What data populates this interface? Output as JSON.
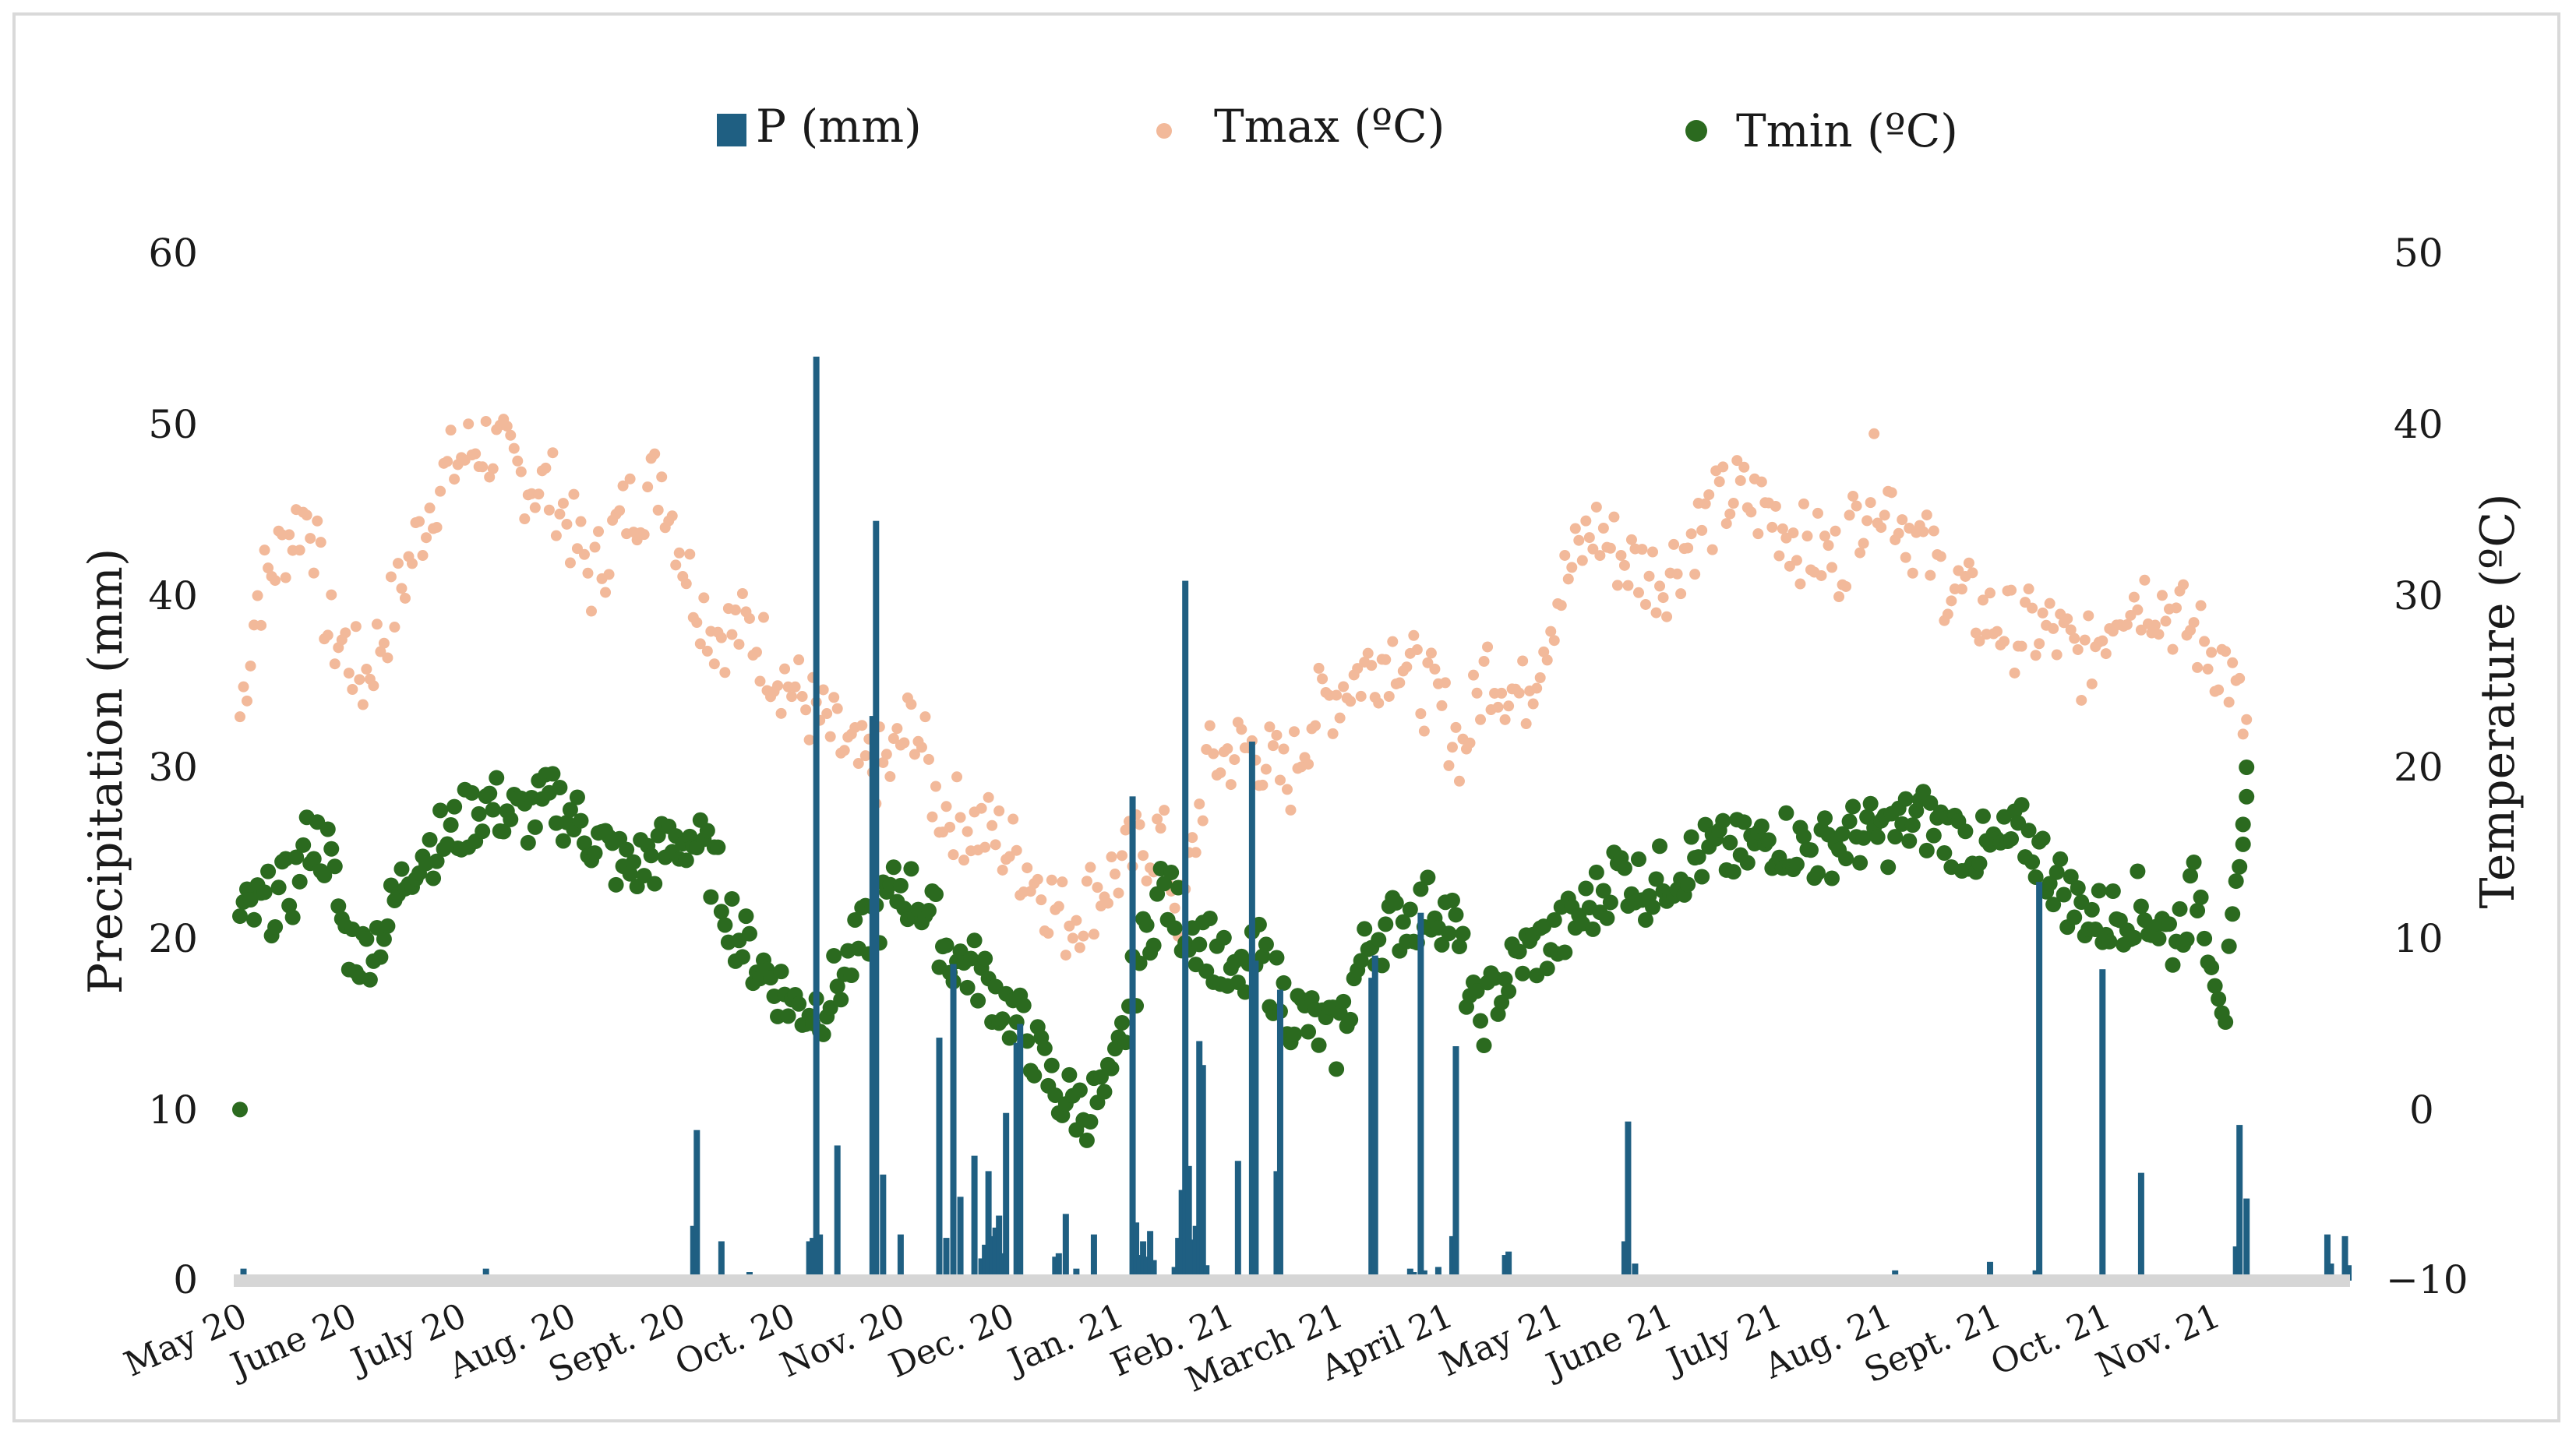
{
  "chart_data": {
    "type": "bar+scatter",
    "title": "",
    "legend": {
      "position": "top",
      "entries": [
        {
          "label": "P (mm)",
          "color": "#1f5f82",
          "marker": "bar"
        },
        {
          "label": "Tmax (ºC)",
          "color": "#f2b99a",
          "marker": "dot"
        },
        {
          "label": "Tmin (ºC)",
          "color": "#2b6a1f",
          "marker": "dot"
        }
      ]
    },
    "y_left": {
      "label": "Precipitation (mm)",
      "min": 0,
      "max": 60,
      "ticks": [
        "60",
        "50",
        "40",
        "30",
        "20",
        "10",
        "0"
      ]
    },
    "y_right": {
      "label": "Temperature (ºC)",
      "min": -10,
      "max": 50,
      "ticks": [
        "50",
        "40",
        "30",
        "20",
        "10",
        "0",
        "−10"
      ]
    },
    "x_months": [
      "May 20",
      "June 20",
      "July 20",
      "Aug. 20",
      "Sept. 20",
      "Oct. 20",
      "Nov. 20",
      "Dec. 20",
      "Jan. 21",
      "Feb. 21",
      "March 21",
      "April 21",
      "May 21",
      "June 21",
      "July 21",
      "Aug. 21",
      "Sept. 21",
      "Oct. 21",
      "Nov. 21"
    ],
    "x_range_days": [
      0,
      570
    ],
    "precipitation": [
      {
        "day": 1,
        "p": 0.7
      },
      {
        "day": 25,
        "p": 0.2
      },
      {
        "day": 70,
        "p": 0.7
      },
      {
        "day": 102,
        "p": 0.2
      },
      {
        "day": 129,
        "p": 3.2
      },
      {
        "day": 130,
        "p": 8.8
      },
      {
        "day": 137,
        "p": 2.3
      },
      {
        "day": 145,
        "p": 0.5
      },
      {
        "day": 162,
        "p": 2.3
      },
      {
        "day": 163,
        "p": 2.5
      },
      {
        "day": 164,
        "p": 54
      },
      {
        "day": 165,
        "p": 2.7
      },
      {
        "day": 170,
        "p": 7.9
      },
      {
        "day": 178,
        "p": 0.2
      },
      {
        "day": 180,
        "p": 33
      },
      {
        "day": 181,
        "p": 44.4
      },
      {
        "day": 183,
        "p": 6.2
      },
      {
        "day": 188,
        "p": 2.7
      },
      {
        "day": 199,
        "p": 14.2
      },
      {
        "day": 201,
        "p": 2.5
      },
      {
        "day": 203,
        "p": 18.5
      },
      {
        "day": 205,
        "p": 4.9
      },
      {
        "day": 209,
        "p": 7.3
      },
      {
        "day": 211,
        "p": 1.3
      },
      {
        "day": 212,
        "p": 2.1
      },
      {
        "day": 213,
        "p": 6.4
      },
      {
        "day": 214,
        "p": 2.6
      },
      {
        "day": 215,
        "p": 3.1
      },
      {
        "day": 216,
        "p": 3.8
      },
      {
        "day": 217,
        "p": 1.6
      },
      {
        "day": 218,
        "p": 9.8
      },
      {
        "day": 221,
        "p": 13.9
      },
      {
        "day": 222,
        "p": 15
      },
      {
        "day": 232,
        "p": 1.4
      },
      {
        "day": 233,
        "p": 1.6
      },
      {
        "day": 235,
        "p": 3.9
      },
      {
        "day": 238,
        "p": 0.7
      },
      {
        "day": 243,
        "p": 2.7
      },
      {
        "day": 246,
        "p": 0.3
      },
      {
        "day": 254,
        "p": 28.3
      },
      {
        "day": 255,
        "p": 3.4
      },
      {
        "day": 256,
        "p": 1.5
      },
      {
        "day": 257,
        "p": 2.3
      },
      {
        "day": 258,
        "p": 1.4
      },
      {
        "day": 259,
        "p": 2.9
      },
      {
        "day": 260,
        "p": 1.2
      },
      {
        "day": 266,
        "p": 0.8
      },
      {
        "day": 267,
        "p": 2.5
      },
      {
        "day": 268,
        "p": 5.3
      },
      {
        "day": 269,
        "p": 40.9
      },
      {
        "day": 270,
        "p": 6.7
      },
      {
        "day": 271,
        "p": 2.4
      },
      {
        "day": 272,
        "p": 3.2
      },
      {
        "day": 273,
        "p": 14
      },
      {
        "day": 274,
        "p": 12.6
      },
      {
        "day": 275,
        "p": 0.9
      },
      {
        "day": 284,
        "p": 7
      },
      {
        "day": 288,
        "p": 31.5
      },
      {
        "day": 289,
        "p": 18.7
      },
      {
        "day": 295,
        "p": 6.4
      },
      {
        "day": 296,
        "p": 17
      },
      {
        "day": 308,
        "p": 0.2
      },
      {
        "day": 320,
        "p": 0.3
      },
      {
        "day": 322,
        "p": 17.7
      },
      {
        "day": 323,
        "p": 19
      },
      {
        "day": 333,
        "p": 0.7
      },
      {
        "day": 334,
        "p": 0.5
      },
      {
        "day": 336,
        "p": 21.5
      },
      {
        "day": 337,
        "p": 0.6
      },
      {
        "day": 341,
        "p": 0.8
      },
      {
        "day": 345,
        "p": 2.6
      },
      {
        "day": 346,
        "p": 13.7
      },
      {
        "day": 360,
        "p": 1.5
      },
      {
        "day": 361,
        "p": 1.7
      },
      {
        "day": 394,
        "p": 2.3
      },
      {
        "day": 395,
        "p": 9.3
      },
      {
        "day": 397,
        "p": 1
      },
      {
        "day": 471,
        "p": 0.6
      },
      {
        "day": 498,
        "p": 1.1
      },
      {
        "day": 511,
        "p": 0.6
      },
      {
        "day": 512,
        "p": 23.3
      },
      {
        "day": 530,
        "p": 18.2
      },
      {
        "day": 541,
        "p": 6.3
      },
      {
        "day": 568,
        "p": 2
      },
      {
        "day": 569,
        "p": 9.1
      },
      {
        "day": 571,
        "p": 4.8
      },
      {
        "day": 594,
        "p": 2.7
      },
      {
        "day": 595,
        "p": 1
      },
      {
        "day": 599,
        "p": 2.6
      },
      {
        "day": 600,
        "p": 0.9
      }
    ],
    "tmax_anchors": [
      [
        0,
        23
      ],
      [
        5,
        30
      ],
      [
        10,
        32
      ],
      [
        15,
        34
      ],
      [
        20,
        35
      ],
      [
        25,
        28
      ],
      [
        30,
        27
      ],
      [
        35,
        25
      ],
      [
        45,
        30
      ],
      [
        55,
        36
      ],
      [
        62,
        38
      ],
      [
        70,
        39
      ],
      [
        80,
        37
      ],
      [
        90,
        36
      ],
      [
        100,
        31
      ],
      [
        110,
        35
      ],
      [
        120,
        37
      ],
      [
        128,
        31
      ],
      [
        135,
        28
      ],
      [
        145,
        28
      ],
      [
        152,
        26
      ],
      [
        160,
        24
      ],
      [
        168,
        22
      ],
      [
        176,
        20
      ],
      [
        185,
        20
      ],
      [
        192,
        23
      ],
      [
        198,
        18
      ],
      [
        205,
        17
      ],
      [
        215,
        16
      ],
      [
        225,
        14
      ],
      [
        235,
        11
      ],
      [
        245,
        13
      ],
      [
        255,
        15
      ],
      [
        262,
        16
      ],
      [
        268,
        11
      ],
      [
        275,
        20
      ],
      [
        283,
        21
      ],
      [
        290,
        21
      ],
      [
        298,
        19
      ],
      [
        305,
        23
      ],
      [
        315,
        25
      ],
      [
        322,
        26
      ],
      [
        330,
        27
      ],
      [
        335,
        25
      ],
      [
        340,
        24
      ],
      [
        348,
        21
      ],
      [
        355,
        26
      ],
      [
        365,
        24
      ],
      [
        375,
        30
      ],
      [
        385,
        34
      ],
      [
        395,
        32
      ],
      [
        405,
        31
      ],
      [
        415,
        34
      ],
      [
        425,
        36
      ],
      [
        435,
        35
      ],
      [
        445,
        33
      ],
      [
        455,
        32
      ],
      [
        465,
        37
      ],
      [
        475,
        34
      ],
      [
        485,
        31
      ],
      [
        495,
        29
      ],
      [
        505,
        28
      ],
      [
        515,
        28
      ],
      [
        525,
        26
      ],
      [
        535,
        30
      ],
      [
        545,
        30
      ],
      [
        555,
        28
      ],
      [
        565,
        26
      ],
      [
        571,
        22
      ]
    ],
    "tmin_anchors": [
      [
        0,
        11
      ],
      [
        8,
        12
      ],
      [
        15,
        13
      ],
      [
        20,
        16
      ],
      [
        25,
        15
      ],
      [
        30,
        10
      ],
      [
        35,
        9
      ],
      [
        42,
        11
      ],
      [
        50,
        15
      ],
      [
        60,
        16
      ],
      [
        70,
        18
      ],
      [
        80,
        17
      ],
      [
        90,
        18
      ],
      [
        100,
        16
      ],
      [
        110,
        14
      ],
      [
        120,
        15
      ],
      [
        128,
        16
      ],
      [
        135,
        14
      ],
      [
        142,
        10
      ],
      [
        150,
        8
      ],
      [
        158,
        6
      ],
      [
        165,
        6
      ],
      [
        172,
        8
      ],
      [
        180,
        11
      ],
      [
        188,
        13
      ],
      [
        195,
        12
      ],
      [
        202,
        9
      ],
      [
        210,
        8
      ],
      [
        218,
        6
      ],
      [
        225,
        4
      ],
      [
        232,
        1
      ],
      [
        240,
        0
      ],
      [
        248,
        1
      ],
      [
        255,
        8
      ],
      [
        262,
        13
      ],
      [
        268,
        11
      ],
      [
        275,
        10
      ],
      [
        283,
        7
      ],
      [
        290,
        9
      ],
      [
        298,
        6
      ],
      [
        305,
        5
      ],
      [
        312,
        4
      ],
      [
        318,
        8
      ],
      [
        322,
        10
      ],
      [
        330,
        11
      ],
      [
        340,
        12
      ],
      [
        345,
        11
      ],
      [
        352,
        5
      ],
      [
        358,
        7
      ],
      [
        365,
        9
      ],
      [
        375,
        10
      ],
      [
        385,
        12
      ],
      [
        392,
        14
      ],
      [
        400,
        13
      ],
      [
        408,
        14
      ],
      [
        418,
        15
      ],
      [
        428,
        15
      ],
      [
        438,
        16
      ],
      [
        448,
        15
      ],
      [
        458,
        16
      ],
      [
        468,
        16
      ],
      [
        478,
        17
      ],
      [
        488,
        16
      ],
      [
        498,
        15
      ],
      [
        508,
        16
      ],
      [
        515,
        14
      ],
      [
        522,
        12
      ],
      [
        530,
        11
      ],
      [
        540,
        12
      ],
      [
        550,
        10
      ],
      [
        557,
        13
      ],
      [
        565,
        6
      ],
      [
        570,
        15
      ],
      [
        572,
        20
      ]
    ],
    "tmin_outliers": [
      [
        0,
        0
      ],
      [
        571,
        20
      ],
      [
        570,
        15.5
      ]
    ]
  }
}
